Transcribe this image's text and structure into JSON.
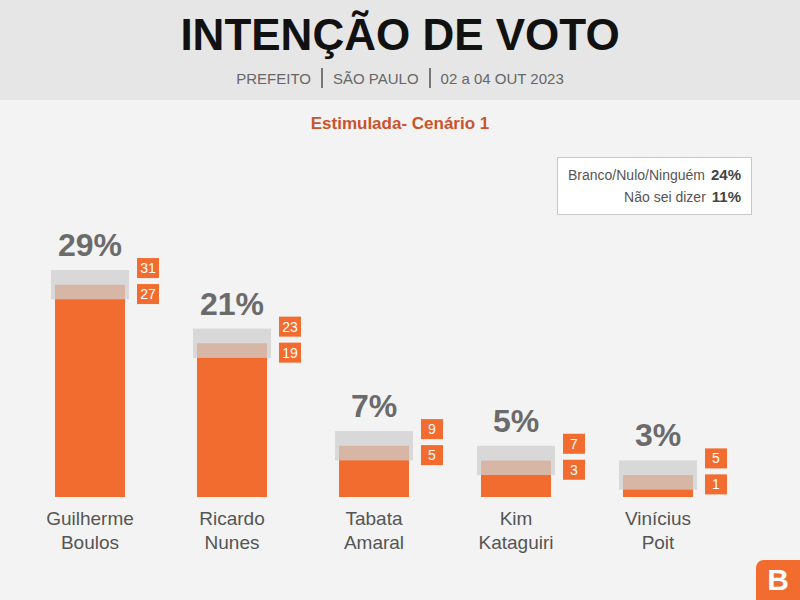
{
  "chart_data": {
    "type": "bar",
    "title": "INTENÇÃO DE VOTO",
    "subtitle": [
      "PREFEITO",
      "SÃO PAULO",
      "02 a 04 OUT 2023"
    ],
    "scenario": "Estimulada- Cenário 1",
    "categories": [
      "Guilherme Boulos",
      "Ricardo Nunes",
      "Tabata Amaral",
      "Kim Kataguiri",
      "Vinícius Poit"
    ],
    "values": [
      29,
      21,
      7,
      5,
      3
    ],
    "value_labels": [
      "29%",
      "21%",
      "7%",
      "5%",
      "3%"
    ],
    "upper": [
      31,
      23,
      9,
      7,
      5
    ],
    "lower": [
      27,
      19,
      5,
      3,
      1
    ],
    "color": "#f26b2f",
    "ylim": [
      0,
      50
    ],
    "tick_labels": false,
    "data_labels": true,
    "notes": [
      {
        "label": "Branco/Nulo/Ninguém",
        "value": 24,
        "value_label": "24%"
      },
      {
        "label": "Não sei dizer",
        "value": 11,
        "value_label": "11%"
      }
    ],
    "logo": "B"
  }
}
